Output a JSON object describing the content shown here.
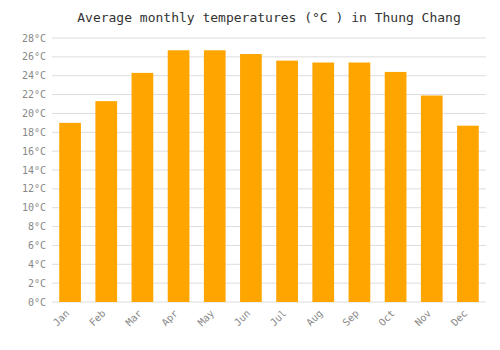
{
  "chart_data": {
    "type": "bar",
    "title": "Average monthly temperatures (°C ) in Thung Chang",
    "categories": [
      "Jan",
      "Feb",
      "Mar",
      "Apr",
      "May",
      "Jun",
      "Jul",
      "Aug",
      "Sep",
      "Oct",
      "Nov",
      "Dec"
    ],
    "values": [
      19.0,
      21.3,
      24.3,
      26.7,
      26.7,
      26.3,
      25.6,
      25.4,
      25.4,
      24.4,
      21.9,
      18.7
    ],
    "color": "#FFA500",
    "ylim": [
      0,
      28
    ],
    "yticks": [
      {
        "value": 0,
        "label": "0°C"
      },
      {
        "value": 2,
        "label": "2°C"
      },
      {
        "value": 4,
        "label": "4°C"
      },
      {
        "value": 6,
        "label": "6°C"
      },
      {
        "value": 8,
        "label": "8°C"
      },
      {
        "value": 10,
        "label": "10°C"
      },
      {
        "value": 12,
        "label": "12°C"
      },
      {
        "value": 14,
        "label": "14°C"
      },
      {
        "value": 16,
        "label": "16°C"
      },
      {
        "value": 18,
        "label": "18°C"
      },
      {
        "value": 20,
        "label": "20°C"
      },
      {
        "value": 22,
        "label": "22°C"
      },
      {
        "value": 24,
        "label": "24°C"
      },
      {
        "value": 26,
        "label": "26°C"
      },
      {
        "value": 28,
        "label": "28°C"
      }
    ],
    "grid": true
  }
}
